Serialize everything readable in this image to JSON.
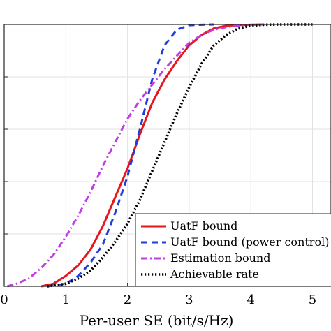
{
  "chart_data": {
    "type": "line",
    "title": "",
    "xlabel": "Per-user SE (bit/s/Hz)",
    "ylabel": "",
    "xlim": [
      0,
      5.3
    ],
    "ylim": [
      0,
      1
    ],
    "xticks": [
      0,
      1,
      2,
      3,
      4,
      5
    ],
    "xtick_labels": [
      "0",
      "1",
      "2",
      "3",
      "4",
      "5"
    ],
    "yticks": [
      0,
      0.2,
      0.4,
      0.6,
      0.8,
      1.0
    ],
    "grid": true,
    "legend_position": "bottom-right",
    "series": [
      {
        "name": "UatF bound",
        "color": "#e8141c",
        "dash": "solid",
        "x": [
          0.6,
          0.8,
          1.0,
          1.2,
          1.4,
          1.6,
          1.8,
          2.0,
          2.2,
          2.4,
          2.6,
          2.8,
          3.0,
          3.2,
          3.4,
          3.6,
          3.8,
          4.0,
          4.2
        ],
        "y": [
          0.0,
          0.01,
          0.04,
          0.08,
          0.14,
          0.23,
          0.34,
          0.45,
          0.58,
          0.7,
          0.79,
          0.86,
          0.92,
          0.96,
          0.985,
          0.995,
          0.998,
          0.999,
          1.0
        ]
      },
      {
        "name": "UatF bound (power control)",
        "color": "#1f3fd8",
        "dash": "dashed",
        "x": [
          0.7,
          1.0,
          1.2,
          1.4,
          1.6,
          1.8,
          2.0,
          2.2,
          2.4,
          2.6,
          2.8,
          3.0,
          3.2,
          3.4
        ],
        "y": [
          0.0,
          0.01,
          0.04,
          0.09,
          0.16,
          0.28,
          0.42,
          0.6,
          0.79,
          0.92,
          0.98,
          0.997,
          0.999,
          1.0
        ]
      },
      {
        "name": "Estimation bound",
        "color": "#c03ce8",
        "dash": "dashdot",
        "x": [
          0.05,
          0.2,
          0.4,
          0.6,
          0.8,
          1.0,
          1.2,
          1.4,
          1.6,
          1.8,
          2.0,
          2.2,
          2.4,
          2.6,
          2.8,
          3.0,
          3.2,
          3.4,
          3.6,
          3.8,
          4.0,
          4.2
        ],
        "y": [
          0.0,
          0.01,
          0.03,
          0.07,
          0.12,
          0.19,
          0.27,
          0.36,
          0.46,
          0.55,
          0.64,
          0.71,
          0.77,
          0.83,
          0.88,
          0.93,
          0.96,
          0.98,
          0.99,
          0.996,
          0.999,
          1.0
        ]
      },
      {
        "name": "Achievable rate",
        "color": "#000000",
        "dash": "dotted",
        "x": [
          0.7,
          1.0,
          1.2,
          1.4,
          1.6,
          1.8,
          2.0,
          2.2,
          2.4,
          2.6,
          2.8,
          3.0,
          3.2,
          3.4,
          3.6,
          3.8,
          4.0,
          4.2,
          4.5,
          5.0
        ],
        "y": [
          0.0,
          0.01,
          0.03,
          0.06,
          0.11,
          0.17,
          0.24,
          0.33,
          0.44,
          0.55,
          0.66,
          0.76,
          0.85,
          0.92,
          0.96,
          0.985,
          0.995,
          0.999,
          1.0,
          1.0
        ]
      }
    ]
  }
}
